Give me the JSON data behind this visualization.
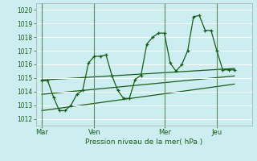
{
  "background_color": "#cceef0",
  "grid_color": "#b8dde0",
  "line_color": "#1a5c1a",
  "tick_label_color": "#1a5c1a",
  "xlabel": "Pression niveau de la mer( hPa )",
  "ylim": [
    1011.5,
    1020.5
  ],
  "yticks": [
    1012,
    1013,
    1014,
    1015,
    1016,
    1017,
    1018,
    1019,
    1020
  ],
  "day_labels": [
    "Mar",
    "Ven",
    "Mer",
    "Jeu"
  ],
  "day_positions": [
    0,
    9,
    21,
    30
  ],
  "xlim": [
    -1,
    36
  ],
  "main_x": [
    0,
    1,
    2,
    3,
    4,
    5,
    6,
    7,
    8,
    9,
    10,
    11,
    12,
    13,
    14,
    15,
    16,
    17,
    18,
    19,
    20,
    21,
    22,
    23,
    24,
    25,
    26,
    27,
    28,
    29,
    30,
    31,
    32,
    33
  ],
  "main_y": [
    1014.8,
    1014.8,
    1013.6,
    1012.6,
    1012.6,
    1013.0,
    1013.8,
    1014.1,
    1016.1,
    1016.6,
    1016.6,
    1016.7,
    1015.2,
    1014.1,
    1013.5,
    1013.5,
    1014.9,
    1015.2,
    1017.5,
    1018.0,
    1018.3,
    1018.3,
    1016.1,
    1015.5,
    1016.0,
    1017.0,
    1019.5,
    1019.6,
    1018.5,
    1018.5,
    1017.0,
    1015.6,
    1015.6,
    1015.6
  ],
  "trend1_x": [
    0,
    33
  ],
  "trend1_y": [
    1014.85,
    1015.7
  ],
  "trend2_x": [
    0,
    33
  ],
  "trend2_y": [
    1013.8,
    1015.15
  ],
  "trend3_x": [
    0,
    33
  ],
  "trend3_y": [
    1012.6,
    1014.55
  ],
  "vline_positions": [
    0,
    9,
    21,
    30
  ]
}
